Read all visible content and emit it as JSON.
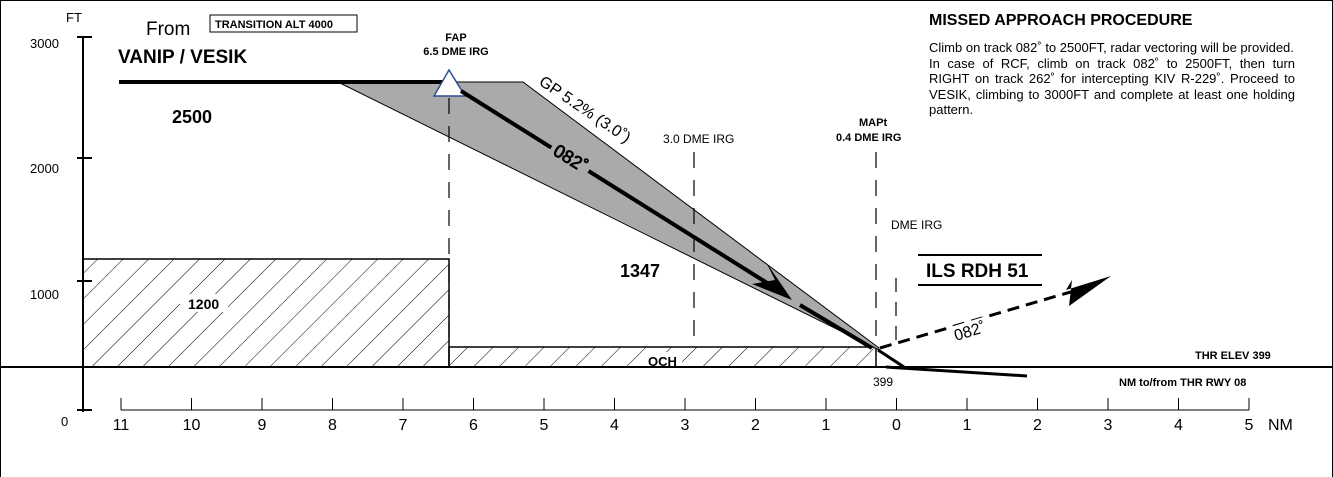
{
  "profile": {
    "y_axis": {
      "unit": "FT",
      "ticks": [
        "3000",
        "2000",
        "1000",
        "0"
      ]
    },
    "x_axis": {
      "unit": "NM",
      "ticks": [
        "11",
        "10",
        "9",
        "8",
        "7",
        "6",
        "5",
        "4",
        "3",
        "2",
        "1",
        "0",
        "1",
        "2",
        "3",
        "4",
        "5"
      ]
    },
    "from_label": "From",
    "from_fix": "VANIP / VESIK",
    "transition": "TRANSITION ALT 4000",
    "intermediate_alt": "2500",
    "fap": {
      "name": "FAP",
      "dme": "6.5 DME IRG"
    },
    "glidepath": {
      "label": "GP 5.2% (3.0˚)",
      "track": "082˚"
    },
    "dme_3": "3.0 DME IRG",
    "mapt": {
      "name": "MAPt",
      "dme": "0.4 DME IRG"
    },
    "dme_irg": "DME IRG",
    "altitudes": {
      "high": "1347",
      "low": "1200"
    },
    "och": "OCH",
    "ils_rdh": "ILS RDH 51",
    "missed_track": "082˚",
    "thr_elev": "THR ELEV 399",
    "thr_value": "399",
    "nm_ref": "NM to/from THR RWY 08"
  },
  "missed_approach": {
    "title": "MISSED APPROACH PROCEDURE",
    "paragraphs": [
      "Climb on track 082˚ to 2500FT, radar vectoring will be provided.",
      "In case of RCF, climb on track 082˚ to 2500FT, then turn RIGHT on track 262˚ for intercepting KIV R-229˚. Proceed to VESIK, climbing to 3000FT and complete at least one holding pattern."
    ]
  }
}
